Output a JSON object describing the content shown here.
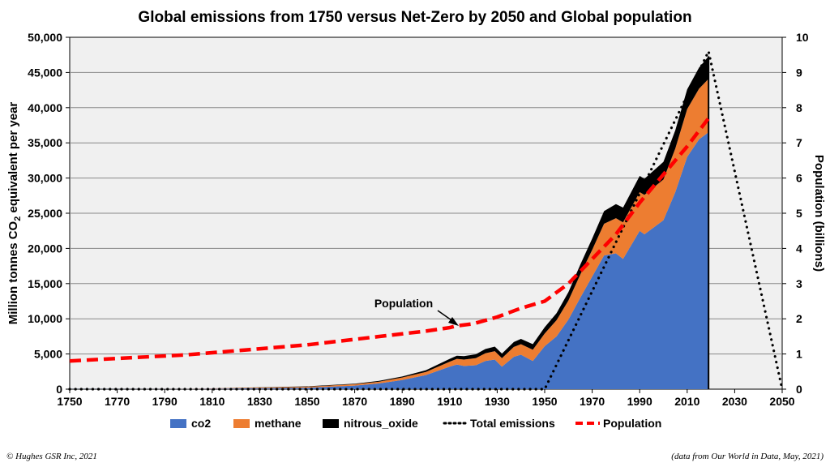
{
  "chart_data": {
    "type": "area",
    "title": "Global emissions from 1750 versus Net-Zero by 2050 and Global population",
    "ylabel_prefix": "Million  tonnes CO",
    "ylabel_sub": "2",
    "ylabel_suffix": " equivalent per year",
    "y2label": "Population  (billions)",
    "xlim": [
      1750,
      2050
    ],
    "ylim": [
      0,
      50000
    ],
    "y2lim": [
      0,
      10
    ],
    "x_ticks": [
      "1750",
      "1770",
      "1790",
      "1810",
      "1830",
      "1850",
      "1870",
      "1890",
      "1910",
      "1930",
      "1950",
      "1970",
      "1990",
      "2010",
      "2030",
      "2050"
    ],
    "y_ticks": [
      "0",
      "5,000",
      "10,000",
      "15,000",
      "20,000",
      "25,000",
      "30,000",
      "35,000",
      "40,000",
      "45,000",
      "50,000"
    ],
    "y2_ticks": [
      "0",
      "1",
      "2",
      "3",
      "4",
      "5",
      "6",
      "7",
      "8",
      "9",
      "10"
    ],
    "grid": true,
    "legend_position": "bottom",
    "years": [
      1750,
      1800,
      1850,
      1870,
      1880,
      1890,
      1900,
      1910,
      1913,
      1916,
      1921,
      1925,
      1929,
      1932,
      1937,
      1940,
      1945,
      1950,
      1955,
      1960,
      1965,
      1970,
      1975,
      1980,
      1983,
      1990,
      1992,
      2000,
      2005,
      2010,
      2015,
      2019
    ],
    "series": [
      {
        "name": "co2",
        "color": "#4472c4",
        "values": [
          10,
          30,
          200,
          500,
          800,
          1300,
          2000,
          3200,
          3500,
          3300,
          3400,
          4000,
          4200,
          3200,
          4600,
          4900,
          4000,
          6100,
          7500,
          9900,
          13000,
          16000,
          19000,
          19300,
          18500,
          22500,
          22000,
          24000,
          28000,
          33000,
          35500,
          36500
        ]
      },
      {
        "name": "methane",
        "color": "#ed7d31",
        "values": [
          0,
          20,
          150,
          200,
          250,
          350,
          450,
          700,
          800,
          900,
          1000,
          1100,
          1200,
          1200,
          1400,
          1500,
          1600,
          1800,
          2300,
          2700,
          3300,
          3800,
          4500,
          5000,
          5200,
          5500,
          5600,
          5800,
          6200,
          6800,
          7200,
          7600
        ]
      },
      {
        "name": "nitrous_oxide",
        "color": "#000000",
        "values": [
          0,
          0,
          50,
          80,
          110,
          150,
          250,
          400,
          450,
          500,
          550,
          600,
          650,
          650,
          700,
          750,
          800,
          900,
          1000,
          1200,
          1400,
          1600,
          1800,
          2000,
          2100,
          2300,
          2300,
          2500,
          2600,
          2800,
          3000,
          3200
        ]
      }
    ],
    "total_emissions": {
      "name": "Total emissions",
      "x": [
        1750,
        1850,
        1950,
        2019,
        2050
      ],
      "y": [
        0,
        0,
        0,
        48000,
        0
      ]
    },
    "population": {
      "name": "Population",
      "x": [
        1750,
        1800,
        1850,
        1900,
        1910,
        1913,
        1920,
        1930,
        1940,
        1950,
        1960,
        1970,
        1980,
        1990,
        2000,
        2010,
        2019
      ],
      "y": [
        0.8,
        0.98,
        1.26,
        1.65,
        1.75,
        1.8,
        1.86,
        2.05,
        2.3,
        2.5,
        3.0,
        3.7,
        4.4,
        5.3,
        6.1,
        6.9,
        7.7
      ]
    },
    "annotation": {
      "text": "Population",
      "x": 1913,
      "y": 1.8
    }
  },
  "footer": {
    "left": "© Hughes GSR Inc, 2021",
    "right": "(data from Our World in Data, May, 2021)"
  }
}
